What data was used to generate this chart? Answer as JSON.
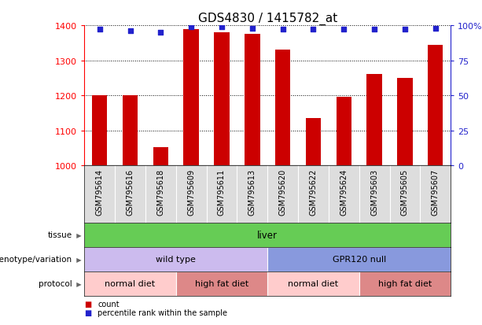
{
  "title": "GDS4830 / 1415782_at",
  "samples": [
    "GSM795614",
    "GSM795616",
    "GSM795618",
    "GSM795609",
    "GSM795611",
    "GSM795613",
    "GSM795620",
    "GSM795622",
    "GSM795624",
    "GSM795603",
    "GSM795605",
    "GSM795607"
  ],
  "counts": [
    1200,
    1200,
    1052,
    1390,
    1380,
    1375,
    1330,
    1135,
    1195,
    1260,
    1250,
    1345
  ],
  "percentile_ranks": [
    97,
    96,
    95,
    99,
    99,
    98,
    97,
    97,
    97,
    97,
    97,
    98
  ],
  "ylim_left": [
    1000,
    1400
  ],
  "ylim_right": [
    0,
    100
  ],
  "yticks_left": [
    1000,
    1100,
    1200,
    1300,
    1400
  ],
  "yticks_right": [
    0,
    25,
    50,
    75,
    100
  ],
  "bar_color": "#cc0000",
  "dot_color": "#2222cc",
  "bar_width": 0.5,
  "tissue_label": "tissue",
  "tissue_text": "liver",
  "tissue_color": "#66cc55",
  "genotype_label": "genotype/variation",
  "genotype_groups": [
    {
      "text": "wild type",
      "start": 0,
      "end": 5,
      "color": "#ccbbee"
    },
    {
      "text": "GPR120 null",
      "start": 6,
      "end": 11,
      "color": "#8899dd"
    }
  ],
  "protocol_label": "protocol",
  "protocol_groups": [
    {
      "text": "normal diet",
      "start": 0,
      "end": 2,
      "color": "#ffcccc"
    },
    {
      "text": "high fat diet",
      "start": 3,
      "end": 5,
      "color": "#dd8888"
    },
    {
      "text": "normal diet",
      "start": 6,
      "end": 8,
      "color": "#ffcccc"
    },
    {
      "text": "high fat diet",
      "start": 9,
      "end": 11,
      "color": "#dd8888"
    }
  ],
  "legend_count_color": "#cc0000",
  "legend_rank_color": "#2222cc",
  "legend_count_label": "count",
  "legend_rank_label": "percentile rank within the sample",
  "background_color": "#ffffff",
  "xticklabel_fontsize": 7,
  "title_fontsize": 11,
  "sample_bg_color": "#dddddd"
}
